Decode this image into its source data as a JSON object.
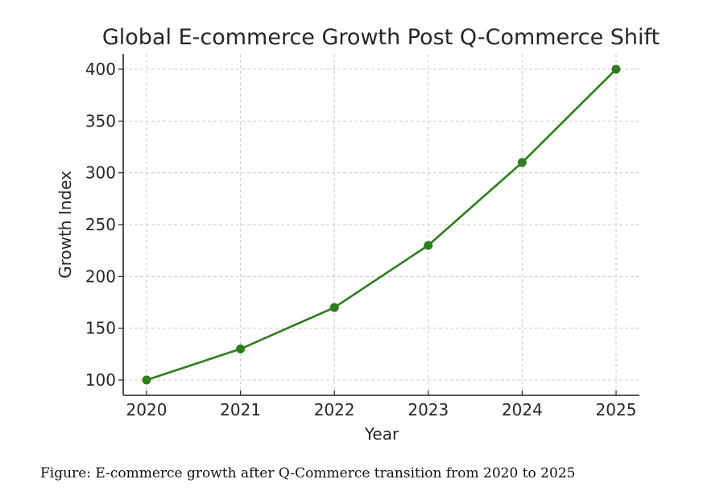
{
  "chart_data": {
    "type": "line",
    "title": "Global E-commerce Growth Post Q-Commerce Shift",
    "xlabel": "Year",
    "ylabel": "Growth Index",
    "x": [
      "2020",
      "2021",
      "2022",
      "2023",
      "2024",
      "2025"
    ],
    "series": [
      {
        "name": "Growth Index",
        "values": [
          100,
          130,
          170,
          230,
          310,
          400
        ],
        "color": "#2e7d1f",
        "marker": "circle"
      }
    ],
    "yticks": [
      100,
      150,
      200,
      250,
      300,
      350,
      400
    ],
    "ylim": [
      85,
      415
    ],
    "grid": true,
    "grid_style": "dashed",
    "legend": "none"
  },
  "caption": "Figure: E-commerce growth after Q-Commerce transition from 2020 to 2025"
}
